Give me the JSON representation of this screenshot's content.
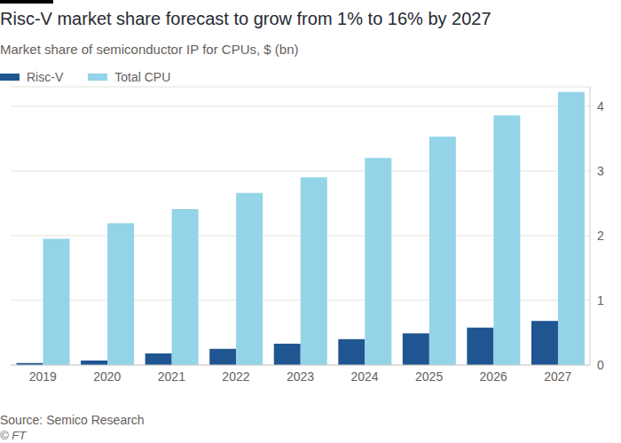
{
  "chart_data": {
    "type": "bar",
    "title": "Risc-V market share forecast to grow from 1% to 16% by 2027",
    "subtitle": "Market share of semiconductor IP for CPUs, $ (bn)",
    "source": "Source: Semico Research",
    "credit": "© FT",
    "categories": [
      "2019",
      "2020",
      "2021",
      "2022",
      "2023",
      "2024",
      "2025",
      "2026",
      "2027"
    ],
    "series": [
      {
        "name": "Risc-V",
        "color": "#1f5591",
        "values": [
          0.03,
          0.07,
          0.18,
          0.25,
          0.33,
          0.4,
          0.49,
          0.58,
          0.68
        ]
      },
      {
        "name": "Total CPU",
        "color": "#93d4e8",
        "values": [
          1.95,
          2.19,
          2.41,
          2.66,
          2.9,
          3.2,
          3.53,
          3.86,
          4.22
        ]
      }
    ],
    "ylim": [
      0,
      4.3
    ],
    "yticks": [
      0,
      1,
      2,
      3,
      4
    ],
    "grid": true,
    "legend": "top-left"
  }
}
